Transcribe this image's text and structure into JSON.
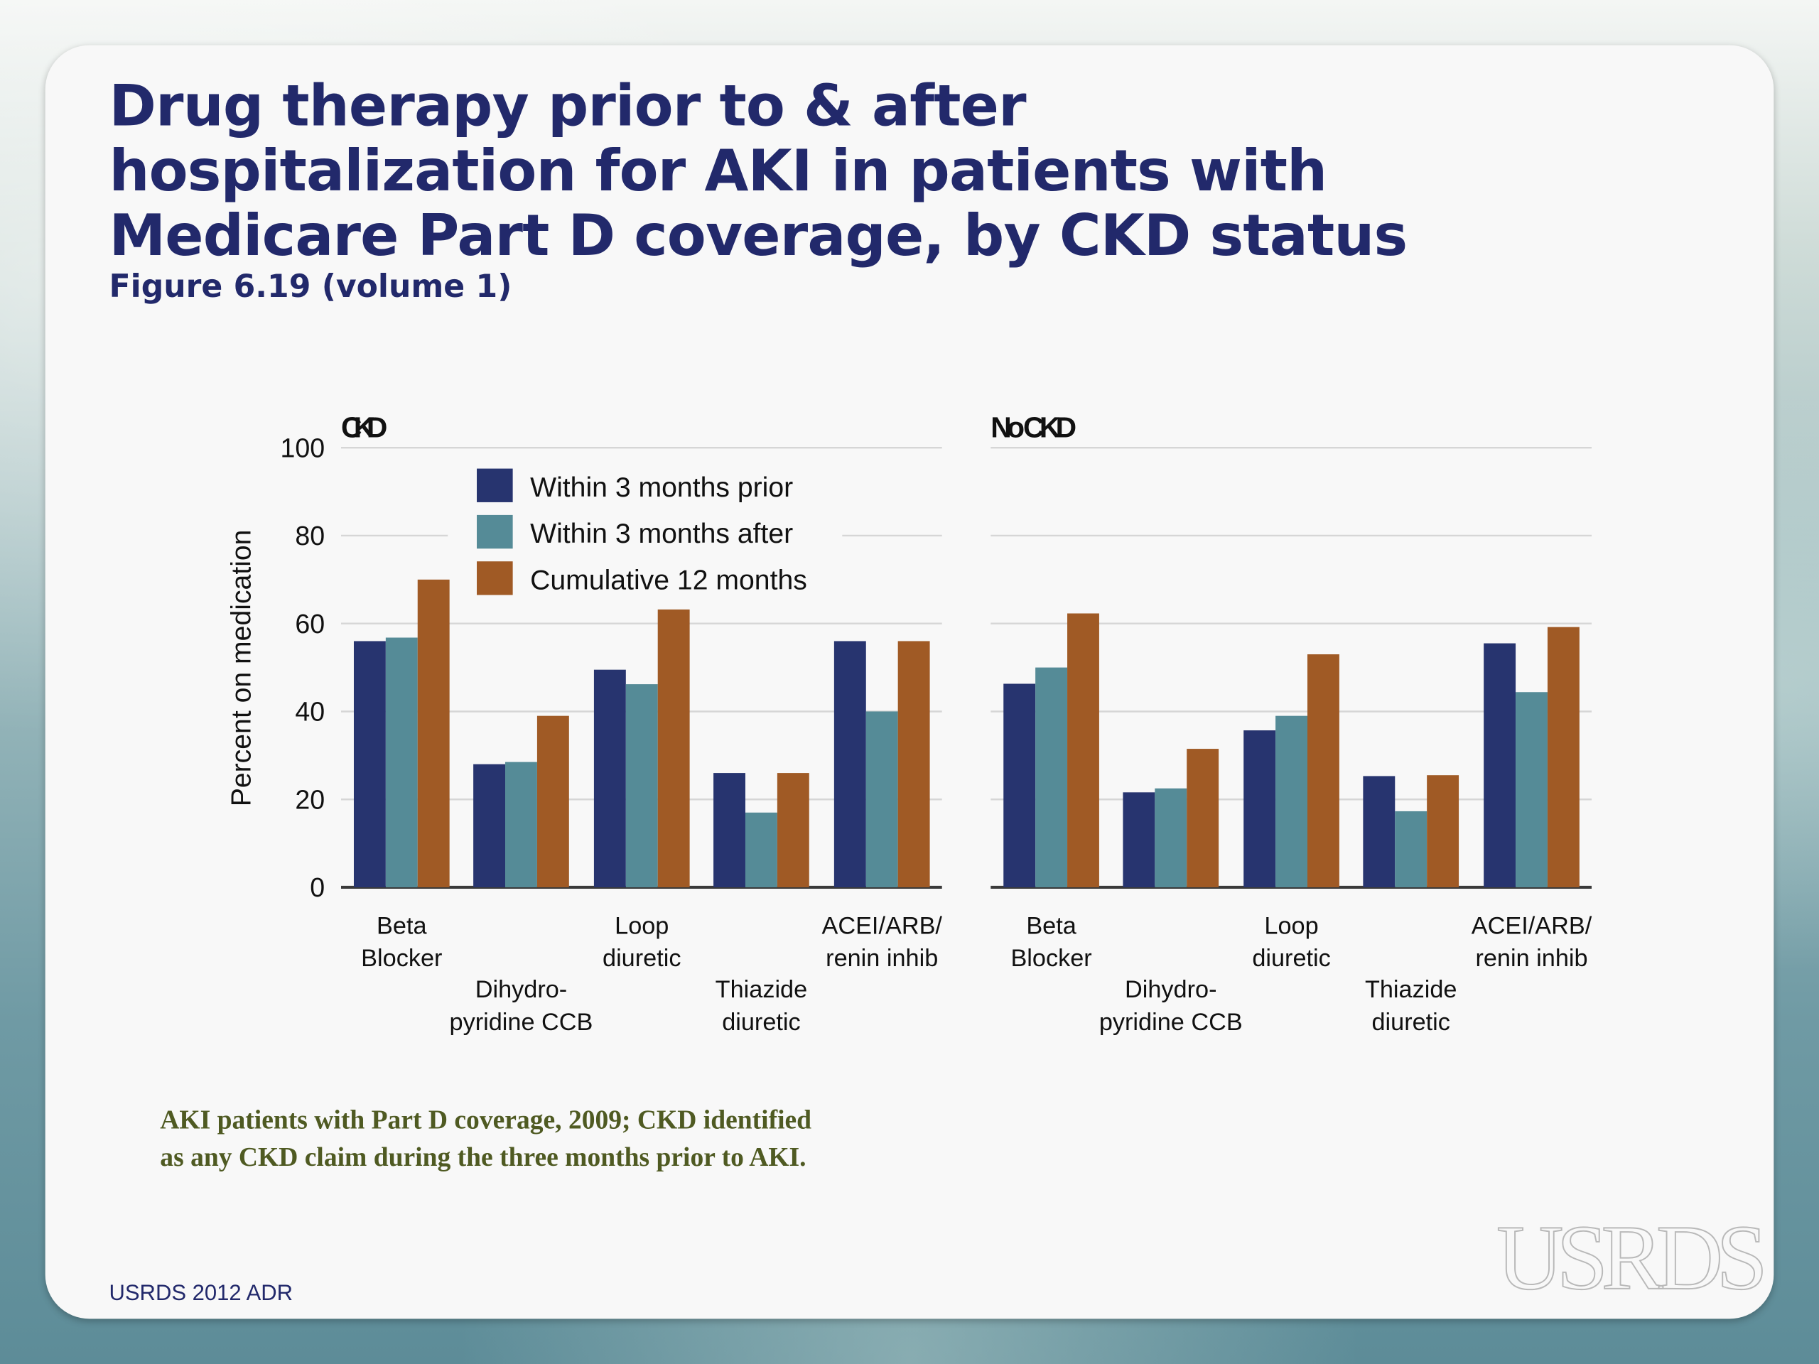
{
  "slide": {
    "title": "Drug therapy prior to & after hospitalization for AKI in patients with Medicare Part D coverage, by CKD status",
    "subtitle": "Figure 6.19 (volume 1)",
    "footnote_line1": "AKI patients with Part D coverage, 2009; CKD identified",
    "footnote_line2": "as any CKD claim during the three months prior to AKI.",
    "source": "USRDS 2012 ADR",
    "logo": "USRDS"
  },
  "chart_data": {
    "type": "bar",
    "ylabel": "Percent on medication",
    "ylim": [
      0,
      100
    ],
    "yticks": [
      "0",
      "20",
      "40",
      "60",
      "80",
      "100"
    ],
    "grid": true,
    "legend_position": "top-left (inside CKD panel)",
    "categories": [
      [
        "Beta",
        "Blocker"
      ],
      [
        "Dihydro-",
        "pyridine CCB"
      ],
      [
        "Loop",
        "diuretic"
      ],
      [
        "Thiazide",
        "diuretic"
      ],
      [
        "ACEI/ARB/",
        "renin inhib"
      ]
    ],
    "series_meta": [
      {
        "name": "Within 3 months prior",
        "color": "#27346f"
      },
      {
        "name": "Within 3 months after",
        "color": "#558b97"
      },
      {
        "name": "Cumulative 12 months",
        "color": "#a05a25"
      }
    ],
    "panels": [
      {
        "title": "CKD",
        "series": [
          {
            "name": "Within 3 months prior",
            "values": [
              56,
              28,
              49.5,
              26,
              56
            ]
          },
          {
            "name": "Within 3 months after",
            "values": [
              56.8,
              28.5,
              46.2,
              17,
              40
            ]
          },
          {
            "name": "Cumulative 12 months",
            "values": [
              70,
              39,
              63.2,
              26,
              56
            ]
          }
        ]
      },
      {
        "title": "No CKD",
        "series": [
          {
            "name": "Within 3 months prior",
            "values": [
              46.3,
              21.6,
              35.7,
              25.3,
              55.5
            ]
          },
          {
            "name": "Within 3 months after",
            "values": [
              50,
              22.5,
              39,
              17.3,
              44.4
            ]
          },
          {
            "name": "Cumulative 12 months",
            "values": [
              62.3,
              31.5,
              53,
              25.5,
              59.2
            ]
          }
        ]
      }
    ]
  }
}
